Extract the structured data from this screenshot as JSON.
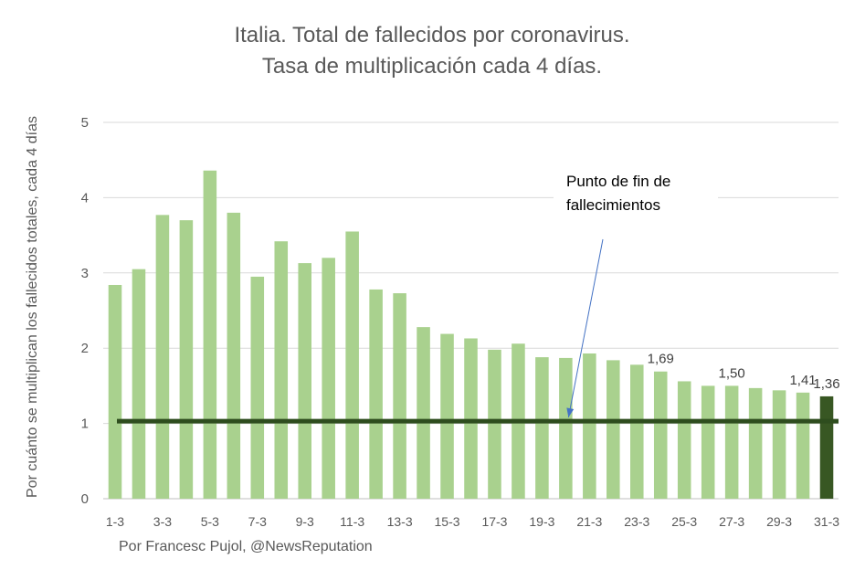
{
  "chart_data": {
    "type": "bar",
    "title_lines": [
      "Italia. Total de fallecidos por coronavirus.",
      "Tasa de multiplicación cada 4 días."
    ],
    "xlabel": "",
    "ylabel": "Por cuánto se multiplican los fallecidos totales, cada 4 días",
    "ylim": [
      0,
      5
    ],
    "yticks": [
      "0",
      "1",
      "2",
      "3",
      "4",
      "5"
    ],
    "grid": true,
    "categories": [
      "1-3",
      "2-3",
      "3-3",
      "4-3",
      "5-3",
      "6-3",
      "7-3",
      "8-3",
      "9-3",
      "10-3",
      "11-3",
      "12-3",
      "13-3",
      "14-3",
      "15-3",
      "16-3",
      "17-3",
      "18-3",
      "19-3",
      "20-3",
      "21-3",
      "22-3",
      "23-3",
      "24-3",
      "25-3",
      "26-3",
      "27-3",
      "28-3",
      "29-3",
      "30-3",
      "31-3"
    ],
    "x_tick_labels": [
      "1-3",
      "3-3",
      "5-3",
      "7-3",
      "9-3",
      "11-3",
      "13-3",
      "15-3",
      "17-3",
      "19-3",
      "21-3",
      "23-3",
      "25-3",
      "27-3",
      "29-3",
      "31-3"
    ],
    "values": [
      2.84,
      3.05,
      3.77,
      3.7,
      4.36,
      3.8,
      2.95,
      3.42,
      3.13,
      3.2,
      3.55,
      2.78,
      2.73,
      2.28,
      2.19,
      2.13,
      1.98,
      2.06,
      1.88,
      1.87,
      1.93,
      1.84,
      1.78,
      1.69,
      1.56,
      1.5,
      1.5,
      1.47,
      1.44,
      1.41,
      1.36
    ],
    "highlight_last": true,
    "bar_color": "#a9d18e",
    "highlight_color": "#385723",
    "data_labels": [
      {
        "category": "24-3",
        "text": "1,69"
      },
      {
        "category": "27-3",
        "text": "1,50"
      },
      {
        "category": "30-3",
        "text": "1,41"
      },
      {
        "category": "31-3",
        "text": "1,36"
      }
    ],
    "reference_line": {
      "value": 1.03,
      "color": "#2e4d1e"
    },
    "annotation": {
      "lines": [
        "Punto de fin de",
        "fallecimientos"
      ],
      "arrow_to_category": "20-3",
      "arrow_to_value": 1.08,
      "arrow_color": "#4472c4"
    }
  },
  "credit": "Por Francesc Pujol, @NewsReputation"
}
